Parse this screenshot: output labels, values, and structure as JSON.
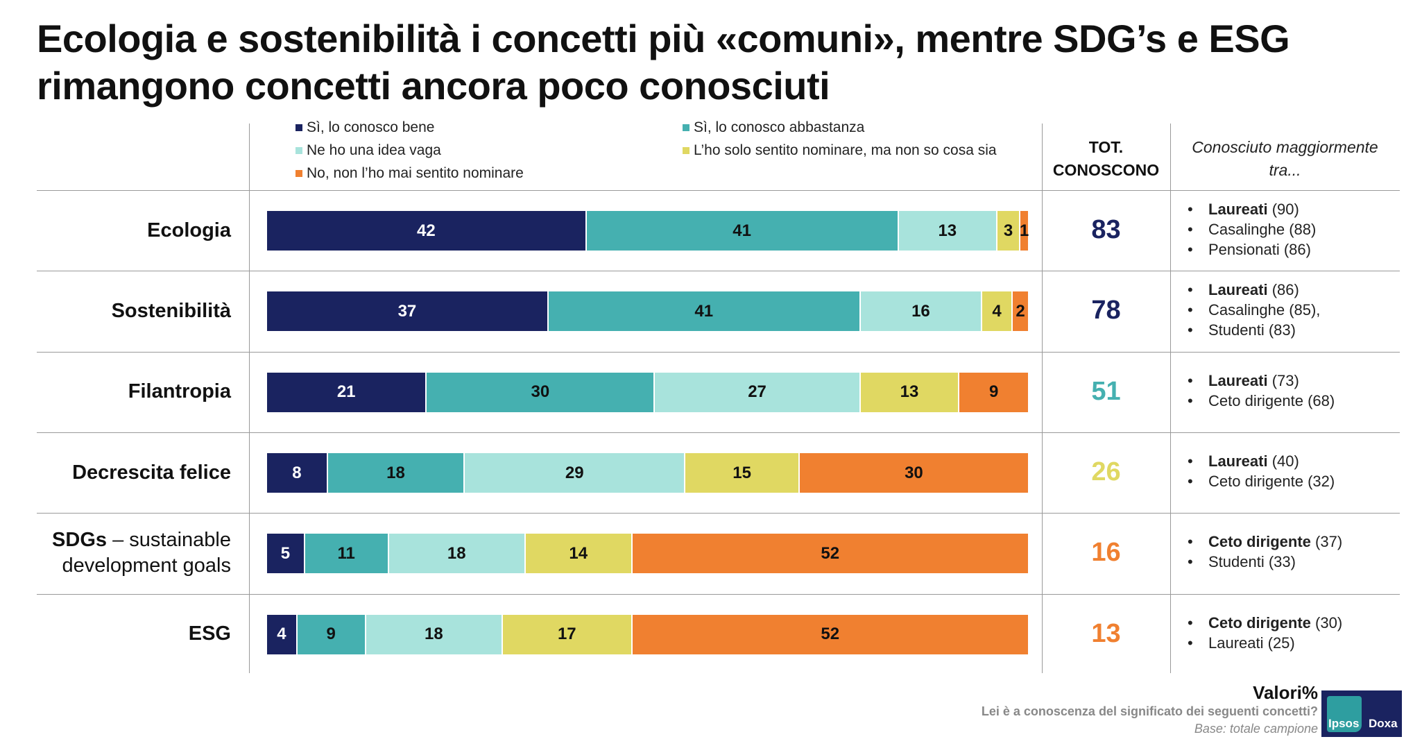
{
  "title": {
    "line1": "Ecologia e sostenibilità i concetti più «comuni», mentre SDG’s e ESG",
    "line2": "rimangono concetti ancora poco conosciuti"
  },
  "header": {
    "tot_line1": "TOT.",
    "tot_line2": "CONOSCONO",
    "known_line1": "Conosciuto maggiormente",
    "known_line2": "tra..."
  },
  "chart_data": {
    "type": "bar",
    "orientation": "horizontal-stacked-100",
    "categories": [
      "Ecologia",
      "Sostenibilità",
      "Filantropia",
      "Decrescita felice",
      "SDGs – sustainable development goals",
      "ESG"
    ],
    "category_labels": [
      {
        "bold": "Ecologia",
        "rest": "",
        "line2": ""
      },
      {
        "bold": "Sostenibilità",
        "rest": "",
        "line2": ""
      },
      {
        "bold": "Filantropia",
        "rest": "",
        "line2": ""
      },
      {
        "bold": "Decrescita felice",
        "rest": "",
        "line2": ""
      },
      {
        "bold": "SDGs",
        "rest": " – sustainable",
        "line2": "development goals"
      },
      {
        "bold": "ESG",
        "rest": "",
        "line2": ""
      }
    ],
    "legend_placement": "top",
    "series": [
      {
        "name": "Sì, lo conosco bene",
        "color": "#1a2360",
        "text_color": "#ffffff",
        "values": [
          42,
          37,
          21,
          8,
          5,
          4
        ]
      },
      {
        "name": "Sì, lo conosco abbastanza",
        "color": "#45b0b0",
        "text_color": "#111111",
        "values": [
          41,
          41,
          30,
          18,
          11,
          9
        ]
      },
      {
        "name": "Ne ho una idea vaga",
        "color": "#a8e3dc",
        "text_color": "#111111",
        "values": [
          13,
          16,
          27,
          29,
          18,
          18
        ]
      },
      {
        "name": "L’ho solo sentito nominare, ma non so cosa sia",
        "color": "#e0d862",
        "text_color": "#111111",
        "values": [
          3,
          4,
          13,
          15,
          14,
          17
        ]
      },
      {
        "name": "No, non l’ho mai sentito nominare",
        "color": "#f08030",
        "text_color": "#111111",
        "values": [
          1,
          2,
          9,
          30,
          52,
          52
        ]
      }
    ],
    "tot_conoscono": [
      {
        "value": "83",
        "color": "#1a2360"
      },
      {
        "value": "78",
        "color": "#1a2360"
      },
      {
        "value": "51",
        "color": "#45b0b0"
      },
      {
        "value": "26",
        "color": "#e0d862"
      },
      {
        "value": "16",
        "color": "#f08030"
      },
      {
        "value": "13",
        "color": "#f08030"
      }
    ],
    "known_among": [
      [
        {
          "bold": "Laureati",
          "val": "(90)"
        },
        {
          "bold": "",
          "val": "Casalinghe (88)"
        },
        {
          "bold": "",
          "val": "Pensionati (86)"
        }
      ],
      [
        {
          "bold": "Laureati",
          "val": "(86)"
        },
        {
          "bold": "",
          "val": "Casalinghe (85),"
        },
        {
          "bold": "",
          "val": "Studenti (83)"
        }
      ],
      [
        {
          "bold": "Laureati",
          "val": "(73)"
        },
        {
          "bold": "",
          "val": "Ceto dirigente (68)"
        }
      ],
      [
        {
          "bold": "Laureati",
          "val": "(40)"
        },
        {
          "bold": "",
          "val": "Ceto dirigente (32)"
        }
      ],
      [
        {
          "bold": "Ceto dirigente",
          "val": "(37)"
        },
        {
          "bold": "",
          "val": "Studenti (33)"
        }
      ],
      [
        {
          "bold": "Ceto dirigente",
          "val": "(30)"
        },
        {
          "bold": "",
          "val": "Laureati (25)"
        }
      ]
    ]
  },
  "footer": {
    "values": "Valori%",
    "question": "Lei è a conoscenza del significato dei seguenti concetti?",
    "base": "Base: totale campione"
  },
  "logo": {
    "left": "Ipsos",
    "right": "Doxa"
  }
}
